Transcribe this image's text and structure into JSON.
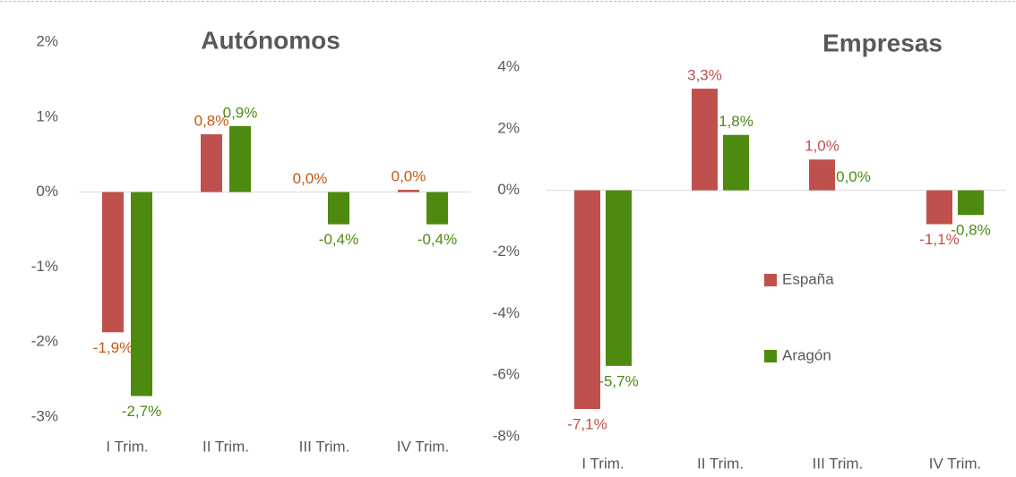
{
  "chart_data": [
    {
      "type": "bar",
      "title": "Autónomos",
      "categories": [
        "I Trim.",
        "II Trim.",
        "III Trim.",
        "IV Trim."
      ],
      "series": [
        {
          "color": "#c0504d",
          "label_color": "#c55a11",
          "values": [
            -1.87,
            0.77,
            0.0,
            0.03
          ],
          "value_labels": [
            "-1,9%",
            "0,8%",
            "0,0%",
            "0,0%"
          ]
        },
        {
          "color": "#4f8a10",
          "label_color": "#4f8a10",
          "values": [
            -2.72,
            0.88,
            -0.43,
            -0.43
          ],
          "value_labels": [
            "-2,7%",
            "0,9%",
            "-0,4%",
            "-0,4%"
          ]
        }
      ],
      "ylim": [
        -3,
        2
      ],
      "yticks": [
        {
          "value": 2,
          "label": "2%"
        },
        {
          "value": 1,
          "label": "1%"
        },
        {
          "value": 0,
          "label": "0%"
        },
        {
          "value": -1,
          "label": "-1%"
        },
        {
          "value": -2,
          "label": "-2%"
        },
        {
          "value": -3,
          "label": "-3%"
        }
      ],
      "grid": false
    },
    {
      "type": "bar",
      "title": "Empresas",
      "categories": [
        "I Trim.",
        "II Trim.",
        "III Trim.",
        "IV Trim."
      ],
      "series": [
        {
          "name": "España",
          "color": "#c0504d",
          "label_color": "#c0504d",
          "values": [
            -7.1,
            3.3,
            1.0,
            -1.1
          ],
          "value_labels": [
            "-7,1%",
            "3,3%",
            "1,0%",
            "-1,1%"
          ]
        },
        {
          "name": "Aragón",
          "color": "#4f8a10",
          "label_color": "#4f8a10",
          "values": [
            -5.7,
            1.8,
            0.0,
            -0.8
          ],
          "value_labels": [
            "-5,7%",
            "1,8%",
            "0,0%",
            "-0,8%"
          ]
        }
      ],
      "ylim": [
        -8,
        4
      ],
      "yticks": [
        {
          "value": 4,
          "label": "4%"
        },
        {
          "value": 2,
          "label": "2%"
        },
        {
          "value": 0,
          "label": "0%"
        },
        {
          "value": -2,
          "label": "-2%"
        },
        {
          "value": -4,
          "label": "-4%"
        },
        {
          "value": -6,
          "label": "-6%"
        },
        {
          "value": -8,
          "label": "-8%"
        }
      ],
      "grid": false,
      "legend": "right"
    }
  ]
}
